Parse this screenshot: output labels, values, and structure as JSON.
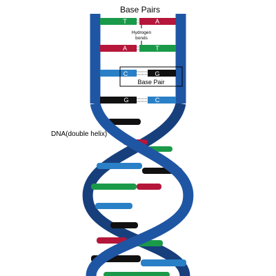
{
  "title": "Base Pairs",
  "hydrogen_label": [
    "Hydrogen",
    "bonds"
  ],
  "base_pair_label": "Base Pair",
  "helix_label": "DNA(double helix)",
  "pairs": [
    {
      "left": "T",
      "right": "A",
      "left_color": "#1a9a49",
      "right_color": "#b5163a"
    },
    {
      "left": "A",
      "right": "T",
      "left_color": "#b5163a",
      "right_color": "#1a9a49"
    },
    {
      "left": "C",
      "right": "G",
      "left_color": "#2a80c6",
      "right_color": "#111111"
    },
    {
      "left": "G",
      "right": "C",
      "left_color": "#111111",
      "right_color": "#2a80c6"
    }
  ],
  "colors": {
    "backbone": "#1f56a4",
    "backbone_dark": "#173f7c",
    "adenine": "#b5163a",
    "thymine": "#1a9a49",
    "cytosine": "#2a80c6",
    "guanine": "#111111"
  }
}
